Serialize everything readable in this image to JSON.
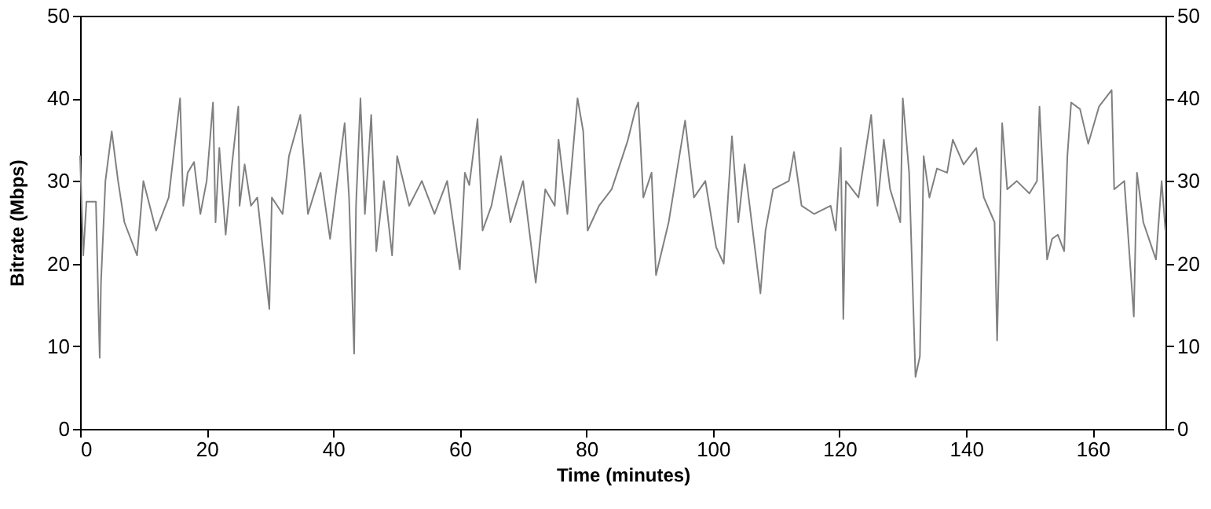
{
  "chart_data": {
    "type": "line",
    "xlabel": "Time (minutes)",
    "ylabel": "Bitrate (Mbps)",
    "xlim": [
      0,
      171.5
    ],
    "xticks": [
      0,
      20,
      40,
      60,
      80,
      100,
      120,
      140,
      160
    ],
    "ylim": [
      0,
      50
    ],
    "yticks": [
      0,
      10,
      20,
      30,
      40,
      50
    ],
    "y2lim": [
      0,
      50
    ],
    "y2ticks": [
      0,
      10,
      20,
      30,
      40,
      50
    ],
    "grid": false,
    "marker": "none",
    "line_style": "solid",
    "series": [
      {
        "color": "#808080",
        "x": [
          0,
          0.5,
          1,
          2.5,
          2.95,
          3.1,
          3.3,
          4,
          5,
          6,
          7,
          9,
          10,
          12,
          14,
          15.8,
          16.3,
          17,
          18,
          19,
          20,
          21,
          21.4,
          22,
          23,
          24,
          25,
          25.2,
          26,
          27,
          28,
          29.9,
          30.3,
          32,
          33,
          34.8,
          36,
          38,
          39.5,
          41.8,
          42.5,
          43.3,
          43.6,
          44.3,
          45,
          46,
          46.8,
          48,
          49.3,
          50.1,
          52,
          54,
          56,
          58,
          60,
          60.8,
          61.5,
          62.8,
          63.6,
          65,
          66.5,
          68,
          70,
          72,
          73.5,
          75,
          75.6,
          77,
          78.6,
          79.5,
          80.2,
          82,
          84,
          86.5,
          87.7,
          88.2,
          89,
          90.3,
          91,
          93,
          95.6,
          97,
          98.8,
          100.5,
          101.7,
          103,
          104,
          105,
          107.5,
          108.3,
          109.5,
          112,
          112.8,
          114,
          116,
          118.6,
          119.4,
          120.2,
          120.6,
          121,
          123,
          125,
          126,
          127,
          128,
          129.6,
          130,
          131,
          132,
          132.7,
          133.3,
          134.2,
          135.4,
          137,
          137.9,
          139.6,
          141.6,
          142.8,
          144.5,
          144.9,
          145.7,
          146.5,
          148,
          150,
          151.2,
          151.6,
          152.8,
          153.6,
          154.5,
          155.5,
          156,
          156.6,
          158,
          159.3,
          161,
          163,
          163.4,
          165,
          166.5,
          167,
          168,
          170,
          170.9,
          171.5
        ],
        "values": [
          33,
          21,
          27.5,
          27.5,
          13,
          8.6,
          17.7,
          30,
          36,
          30,
          25,
          21,
          30,
          24,
          28,
          40,
          27,
          31,
          32.3,
          26,
          30,
          39.5,
          25,
          34,
          23.5,
          32,
          39,
          27,
          32,
          27,
          28,
          14.5,
          28,
          26,
          33,
          38,
          26,
          31,
          23,
          37,
          28,
          9.1,
          27,
          40,
          26,
          38,
          21.5,
          30,
          21,
          33,
          27,
          30,
          26,
          30,
          19.3,
          31,
          29.5,
          37.5,
          24,
          27,
          33,
          25,
          30,
          17.7,
          29,
          27,
          35,
          26,
          40,
          36,
          24,
          27,
          29,
          34.8,
          38.5,
          39.5,
          28,
          31,
          18.6,
          25,
          37.3,
          28,
          30,
          22,
          20,
          35.4,
          25,
          32,
          16.4,
          24,
          29,
          30,
          33.5,
          27,
          26,
          27,
          24,
          34,
          13.3,
          30,
          28,
          38,
          27,
          35,
          29,
          25,
          40,
          31,
          6.3,
          8.8,
          33,
          28,
          31.5,
          31,
          35,
          32,
          34,
          28,
          25,
          10.7,
          37,
          29,
          30,
          28.5,
          30,
          39,
          20.5,
          23,
          23.5,
          21.5,
          33,
          39.5,
          38.7,
          34.5,
          39,
          41,
          29,
          30,
          13.6,
          31,
          25,
          20.5,
          30,
          24
        ]
      }
    ]
  }
}
